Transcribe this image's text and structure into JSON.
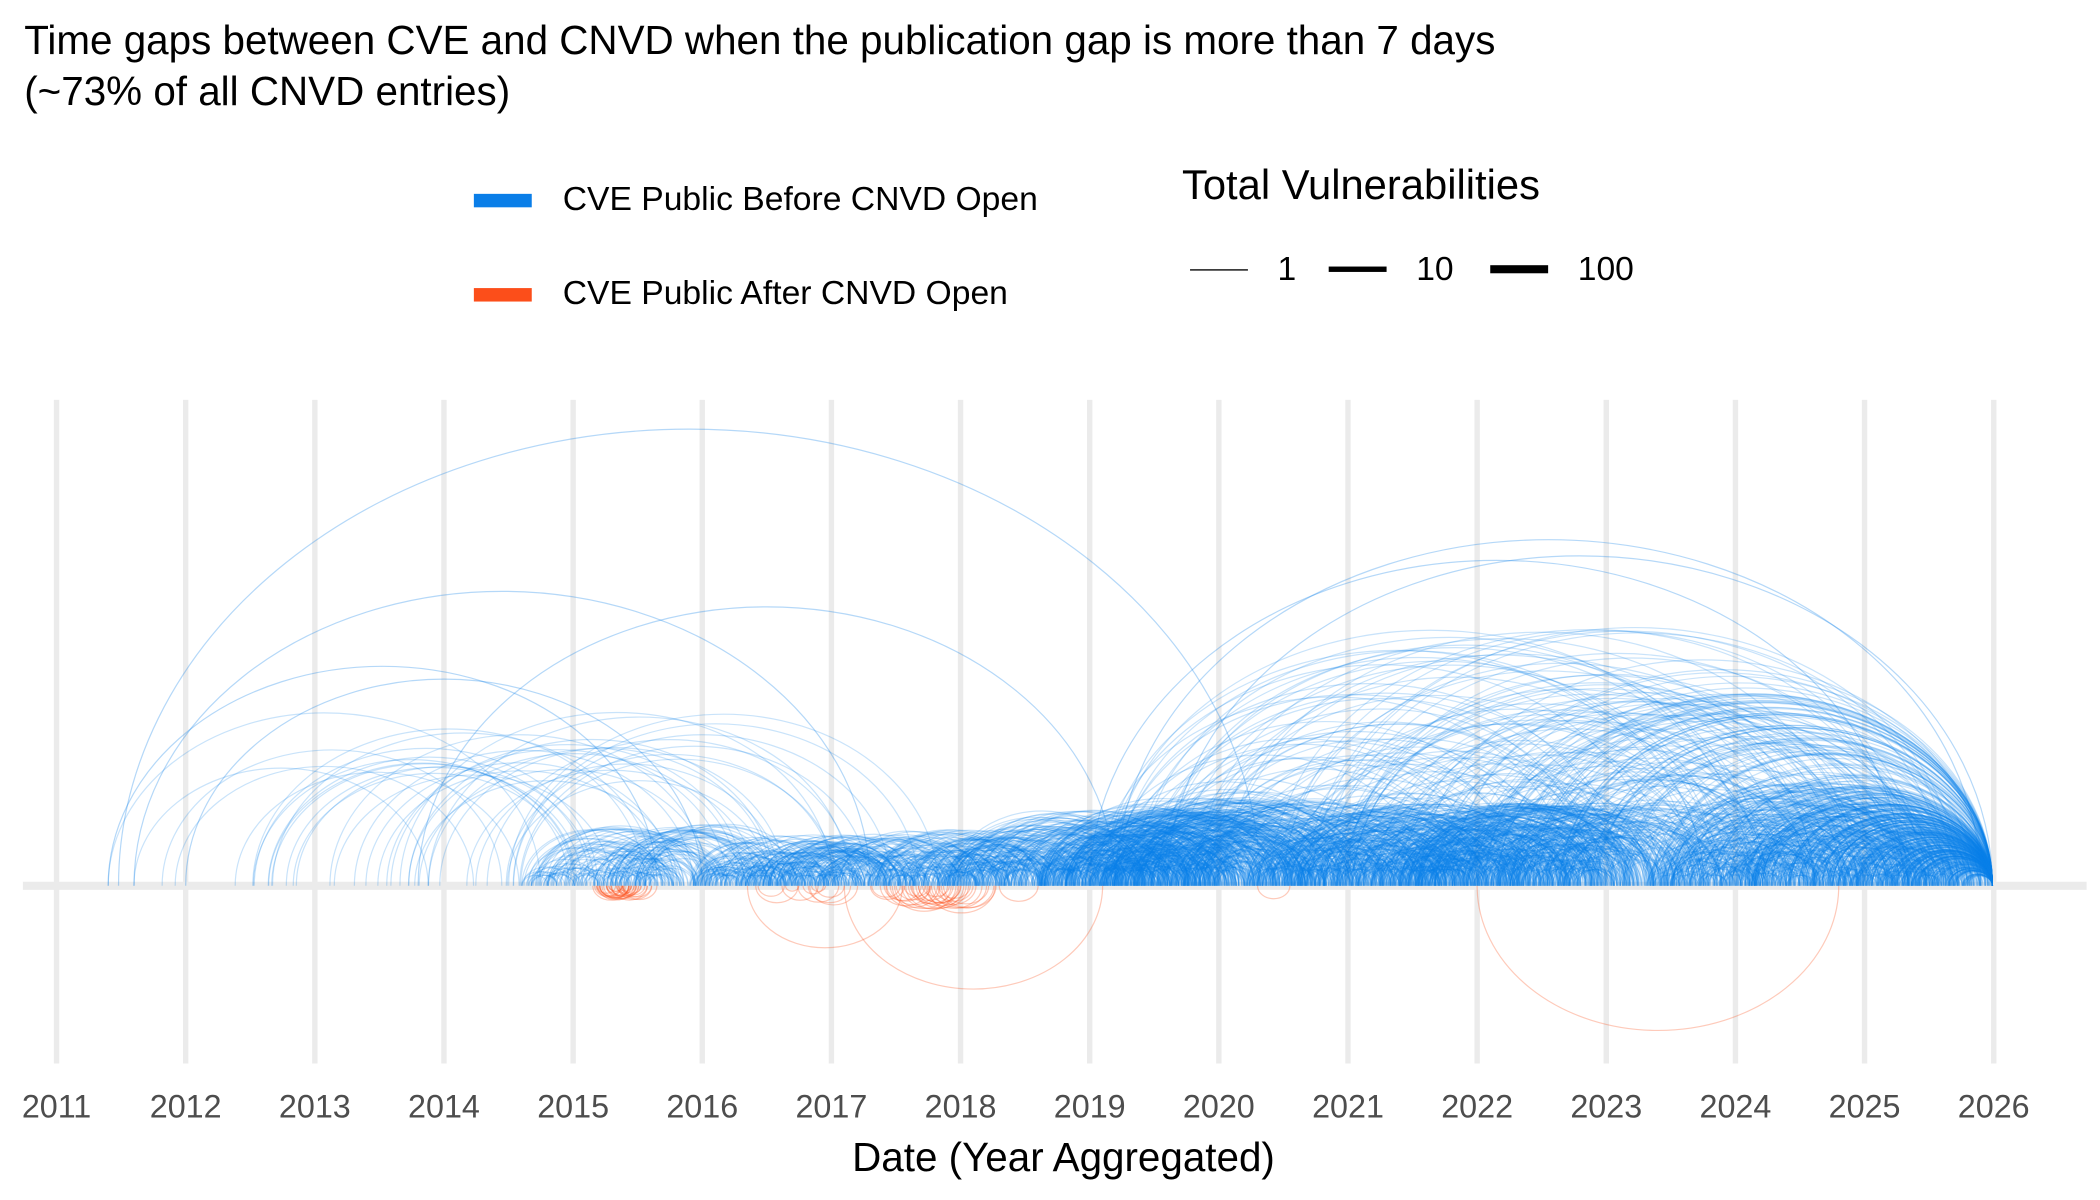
{
  "chart_data": {
    "type": "arc",
    "title_line1": "Time gaps between CVE and CNVD when the publication gap is more than 7 days",
    "title_line2": "(~73% of all CNVD entries)",
    "xlabel": "Date (Year Aggregated)",
    "ylabel": "",
    "xlim": [
      2011,
      2026
    ],
    "x_ticks": [
      "2011",
      "2012",
      "2013",
      "2014",
      "2015",
      "2016",
      "2017",
      "2018",
      "2019",
      "2020",
      "2021",
      "2022",
      "2023",
      "2024",
      "2025",
      "2026"
    ],
    "grid": true,
    "legend_color": {
      "position": "top",
      "items": [
        {
          "label": "CVE Public Before CNVD Open",
          "color": "#0a7ee8",
          "direction": "above"
        },
        {
          "label": "CVE Public After CNVD Open",
          "color": "#fc4e1a",
          "direction": "below"
        }
      ]
    },
    "legend_size": {
      "title": "Total Vulnerabilities",
      "items": [
        {
          "label": "1",
          "value": 1
        },
        {
          "label": "10",
          "value": 10
        },
        {
          "label": "100",
          "value": 100
        }
      ]
    },
    "major_arcs": [
      {
        "from": 2011.48,
        "to": 2020.32,
        "series": 0,
        "n": 1
      },
      {
        "from": 2011.6,
        "to": 2017.3,
        "series": 0,
        "n": 1
      },
      {
        "from": 2011.4,
        "to": 2015.65,
        "series": 0,
        "n": 1
      },
      {
        "from": 2013.8,
        "to": 2019.2,
        "series": 0,
        "n": 1
      },
      {
        "from": 2019.6,
        "to": 2026.0,
        "series": 0,
        "n": 1
      },
      {
        "from": 2019.2,
        "to": 2025.9,
        "series": 0,
        "n": 1
      },
      {
        "from": 2019.0,
        "to": 2025.3,
        "series": 0,
        "n": 1
      },
      {
        "from": 2012.0,
        "to": 2016.0,
        "series": 0,
        "n": 1
      },
      {
        "from": 2022.0,
        "to": 2024.8,
        "series": 1,
        "n": 1
      },
      {
        "from": 2017.1,
        "to": 2019.1,
        "series": 1,
        "n": 1
      },
      {
        "from": 2016.35,
        "to": 2017.55,
        "series": 1,
        "n": 1
      },
      {
        "from": 2018.3,
        "to": 2018.6,
        "series": 1,
        "n": 1
      },
      {
        "from": 2020.3,
        "to": 2020.55,
        "series": 1,
        "n": 1
      }
    ],
    "arc_clusters": [
      {
        "from": [
          2011.4,
          2014.8
        ],
        "span": [
          2.0,
          3.5
        ],
        "count": 40,
        "series": 0
      },
      {
        "from": [
          2014.6,
          2015.6
        ],
        "span": [
          0.2,
          1.2
        ],
        "count": 160,
        "series": 0
      },
      {
        "from": [
          2015.9,
          2016.9
        ],
        "span": [
          0.2,
          1.0
        ],
        "count": 220,
        "series": 0
      },
      {
        "from": [
          2016.9,
          2018.0
        ],
        "span": [
          0.2,
          1.1
        ],
        "count": 220,
        "series": 0
      },
      {
        "from": [
          2017.9,
          2019.4
        ],
        "span": [
          0.3,
          1.5
        ],
        "count": 320,
        "series": 0
      },
      {
        "from": [
          2018.6,
          2020.0
        ],
        "span": [
          0.3,
          1.7
        ],
        "count": 420,
        "series": 0
      },
      {
        "from": [
          2020.2,
          2021.7
        ],
        "span": [
          0.3,
          1.6
        ],
        "count": 420,
        "series": 0
      },
      {
        "from": [
          2021.4,
          2022.8
        ],
        "span": [
          0.3,
          1.6
        ],
        "count": 320,
        "series": 0
      },
      {
        "from": [
          2019.0,
          2025.5
        ],
        "span": [
          0.5,
          5.0
        ],
        "count": 450,
        "series": 0
      },
      {
        "from": [
          2023.3,
          2025.8
        ],
        "span": [
          0.2,
          2.0
        ],
        "count": 650,
        "series": 0
      },
      {
        "from": [
          2015.15,
          2015.4
        ],
        "span": [
          0.1,
          0.3
        ],
        "count": 30,
        "series": 1
      },
      {
        "from": [
          2017.3,
          2017.9
        ],
        "span": [
          0.2,
          0.55
        ],
        "count": 30,
        "series": 1
      },
      {
        "from": [
          2016.4,
          2016.9
        ],
        "span": [
          0.1,
          0.4
        ],
        "count": 10,
        "series": 1
      }
    ]
  }
}
